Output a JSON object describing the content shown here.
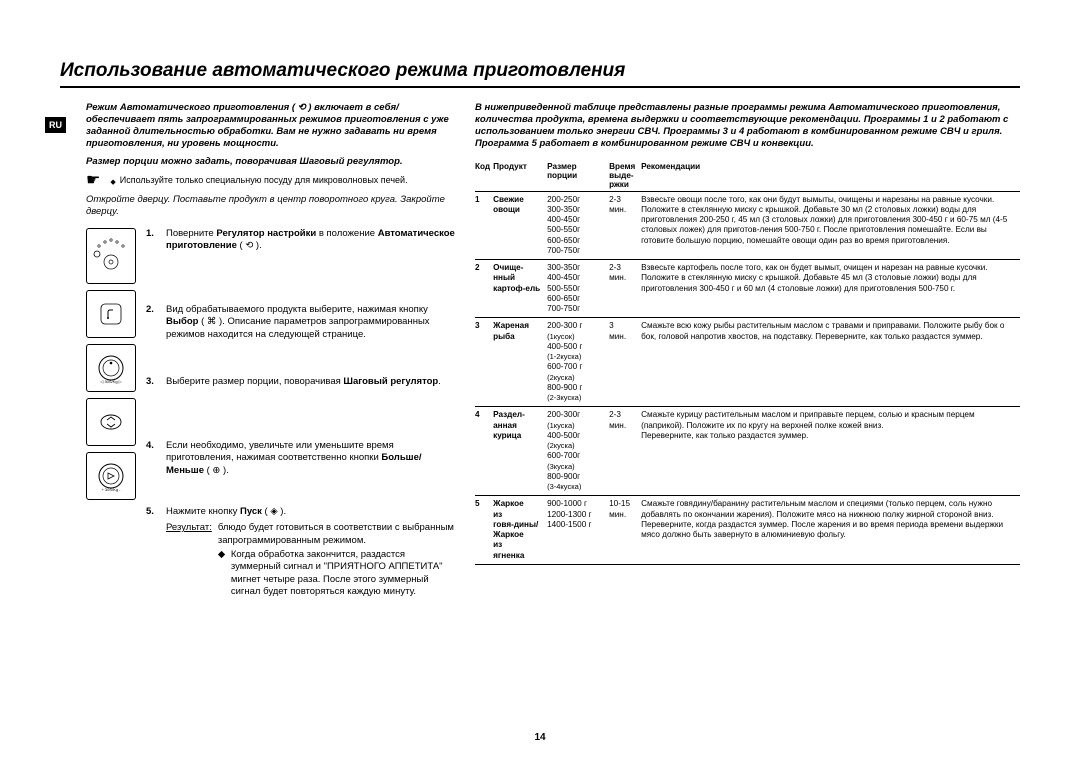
{
  "page": {
    "title": "Использование автоматического режима приготовления",
    "badge": "RU",
    "page_number": "14"
  },
  "left": {
    "intro": "Режим Автоматического приготовления ( ⟲ ) включает в себя/обеспечивает пять запрограммированных режимов приготовления с уже заданной длительностью обработки. Вам не нужно задавать ни время приготовления, ни уровень мощности.",
    "intro2": "Размер порции можно задать, поворачивая Шаговый регулятор.",
    "note": "Используйте только специальную посуду для микроволновых печей.",
    "step_intro": "Откройте дверцу. Поставьте продукт в центр поворотного круга. Закройте дверцу.",
    "steps": [
      {
        "n": "1.",
        "t": "Поверните <b>Регулятор настройки</b> в положение <b>Автоматическое приготовление</b> ( ⟲ )."
      },
      {
        "n": "2.",
        "t": "Вид обрабатываемого продукта выберите, нажимая кнопку <b>Выбор</b> ( ⌘ ). Описание параметров запрограммированных режимов находится на следующей странице."
      },
      {
        "n": "3.",
        "t": "Выберите размер порции, поворачивая <b>Шаговый регулятор</b>."
      },
      {
        "n": "4.",
        "t": "Если необходимо, увеличьте или уменьшите время приготовления, нажимая соответственно кнопки <b>Больше/Меньше</b> ( ⊕ )."
      },
      {
        "n": "5.",
        "t": "Нажмите кнопку <b>Пуск</b> ( ◈ )."
      }
    ],
    "result_label": "Результат:",
    "result_text": "блюдо будет готовиться в соответствии с выбранным запрограммированным режимом.",
    "result_bullet": "Когда обработка закончится, раздастся зуммерный сигнал и \"ПРИЯТНОГО АППЕТИТА\" мигнет четыре раза. После этого зуммерный сигнал будет повторяться каждую минуту."
  },
  "right": {
    "intro": "В нижеприведенной таблице представлены разные программы режима Автоматического приготовления, количества продукта, времена выдержки и соответствующие рекомендации. Программы 1 и 2 работают с использованием только энергии СВЧ. Программы 3 и 4 работают в комбинированном режиме СВЧ и гриля. Программа 5 работает в комбинированном режиме СВЧ и конвекции.",
    "headers": {
      "code": "Код",
      "prod": "Продукт",
      "size": "Размер порции",
      "time": "Время выде-ржки",
      "rec": "Рекомендации"
    },
    "rows": [
      {
        "code": "1",
        "prod": "Свежие овощи",
        "size": "200-250г\n300-350г\n400-450г\n500-550г\n600-650г\n700-750г",
        "time": "2-3 мин.",
        "rec": "Взвесьте овощи после того, как они будут вымыты, очищены и нарезаны на равные кусочки. Положите в стеклянную миску с крышкой. Добавьте 30 мл (2 столовых ложки) воды для приготовления 200-250 г, 45 мл (3 столовых ложки) для приготовления 300-450 г и 60-75 мл (4-5 столовых ложек) для приготов-ления 500-750 г. После приготовления помешайте. Если вы готовите большую порцию, помешайте овощи один раз во время приготовления."
      },
      {
        "code": "2",
        "prod": "Очище-нный картоф-ель",
        "size": "300-350г\n400-450г\n500-550г\n600-650г\n700-750г",
        "time": "2-3 мин.",
        "rec": "Взвесьте картофель после того, как он будет вымыт, очищен и нарезан на равные кусочки. Положите в стеклянную миску с крышкой. Добавьте 45 мл (3 столовые ложки) воды для приготовления 300-450 г и 60 мл (4 столовые ложки) для приготовления 500-750 г."
      },
      {
        "code": "3",
        "prod": "Жареная рыба",
        "size": "200-300 г (1кусок)\n400-500 г (1-2куска)\n600-700 г (2куска)\n800-900 г (2-3куска)",
        "time": "3 мин.",
        "rec": "Смажьте всю кожу рыбы растительным маслом с травами и приправами. Положите рыбу бок о бок, головой напротив хвостов, на подставку. Переверните, как только раздастся зуммер."
      },
      {
        "code": "4",
        "prod": "Раздел-анная курица",
        "size": "200-300г (1куска)\n400-500г (2куска)\n600-700г (3куска)\n800-900г (3-4куска)",
        "time": "2-3 мин.",
        "rec": "Смажьте курицу растительным маслом и приправьте перцем, солью и красным перцем (паприкой). Положите их по кругу на верхней полке кожей вниз.\nПереверните, как только раздастся зуммер."
      },
      {
        "code": "5",
        "prod": "Жаркое из говя-дины/ Жаркое из ягненка",
        "size": "900-1000 г\n1200-1300 г\n1400-1500 г",
        "time": "10-15 мин.",
        "rec": "Смажьте говядину/баранину растительным маслом и специями (только перцем, соль нужно добавлять по окончании жарения). Положите мясо на нижнюю полку жирной стороной вниз. Переверните, когда раздастся зуммер. После жарения и во время периода времени выдержки мясо должно быть завернуто в алюминиевую фольгу."
      }
    ]
  }
}
